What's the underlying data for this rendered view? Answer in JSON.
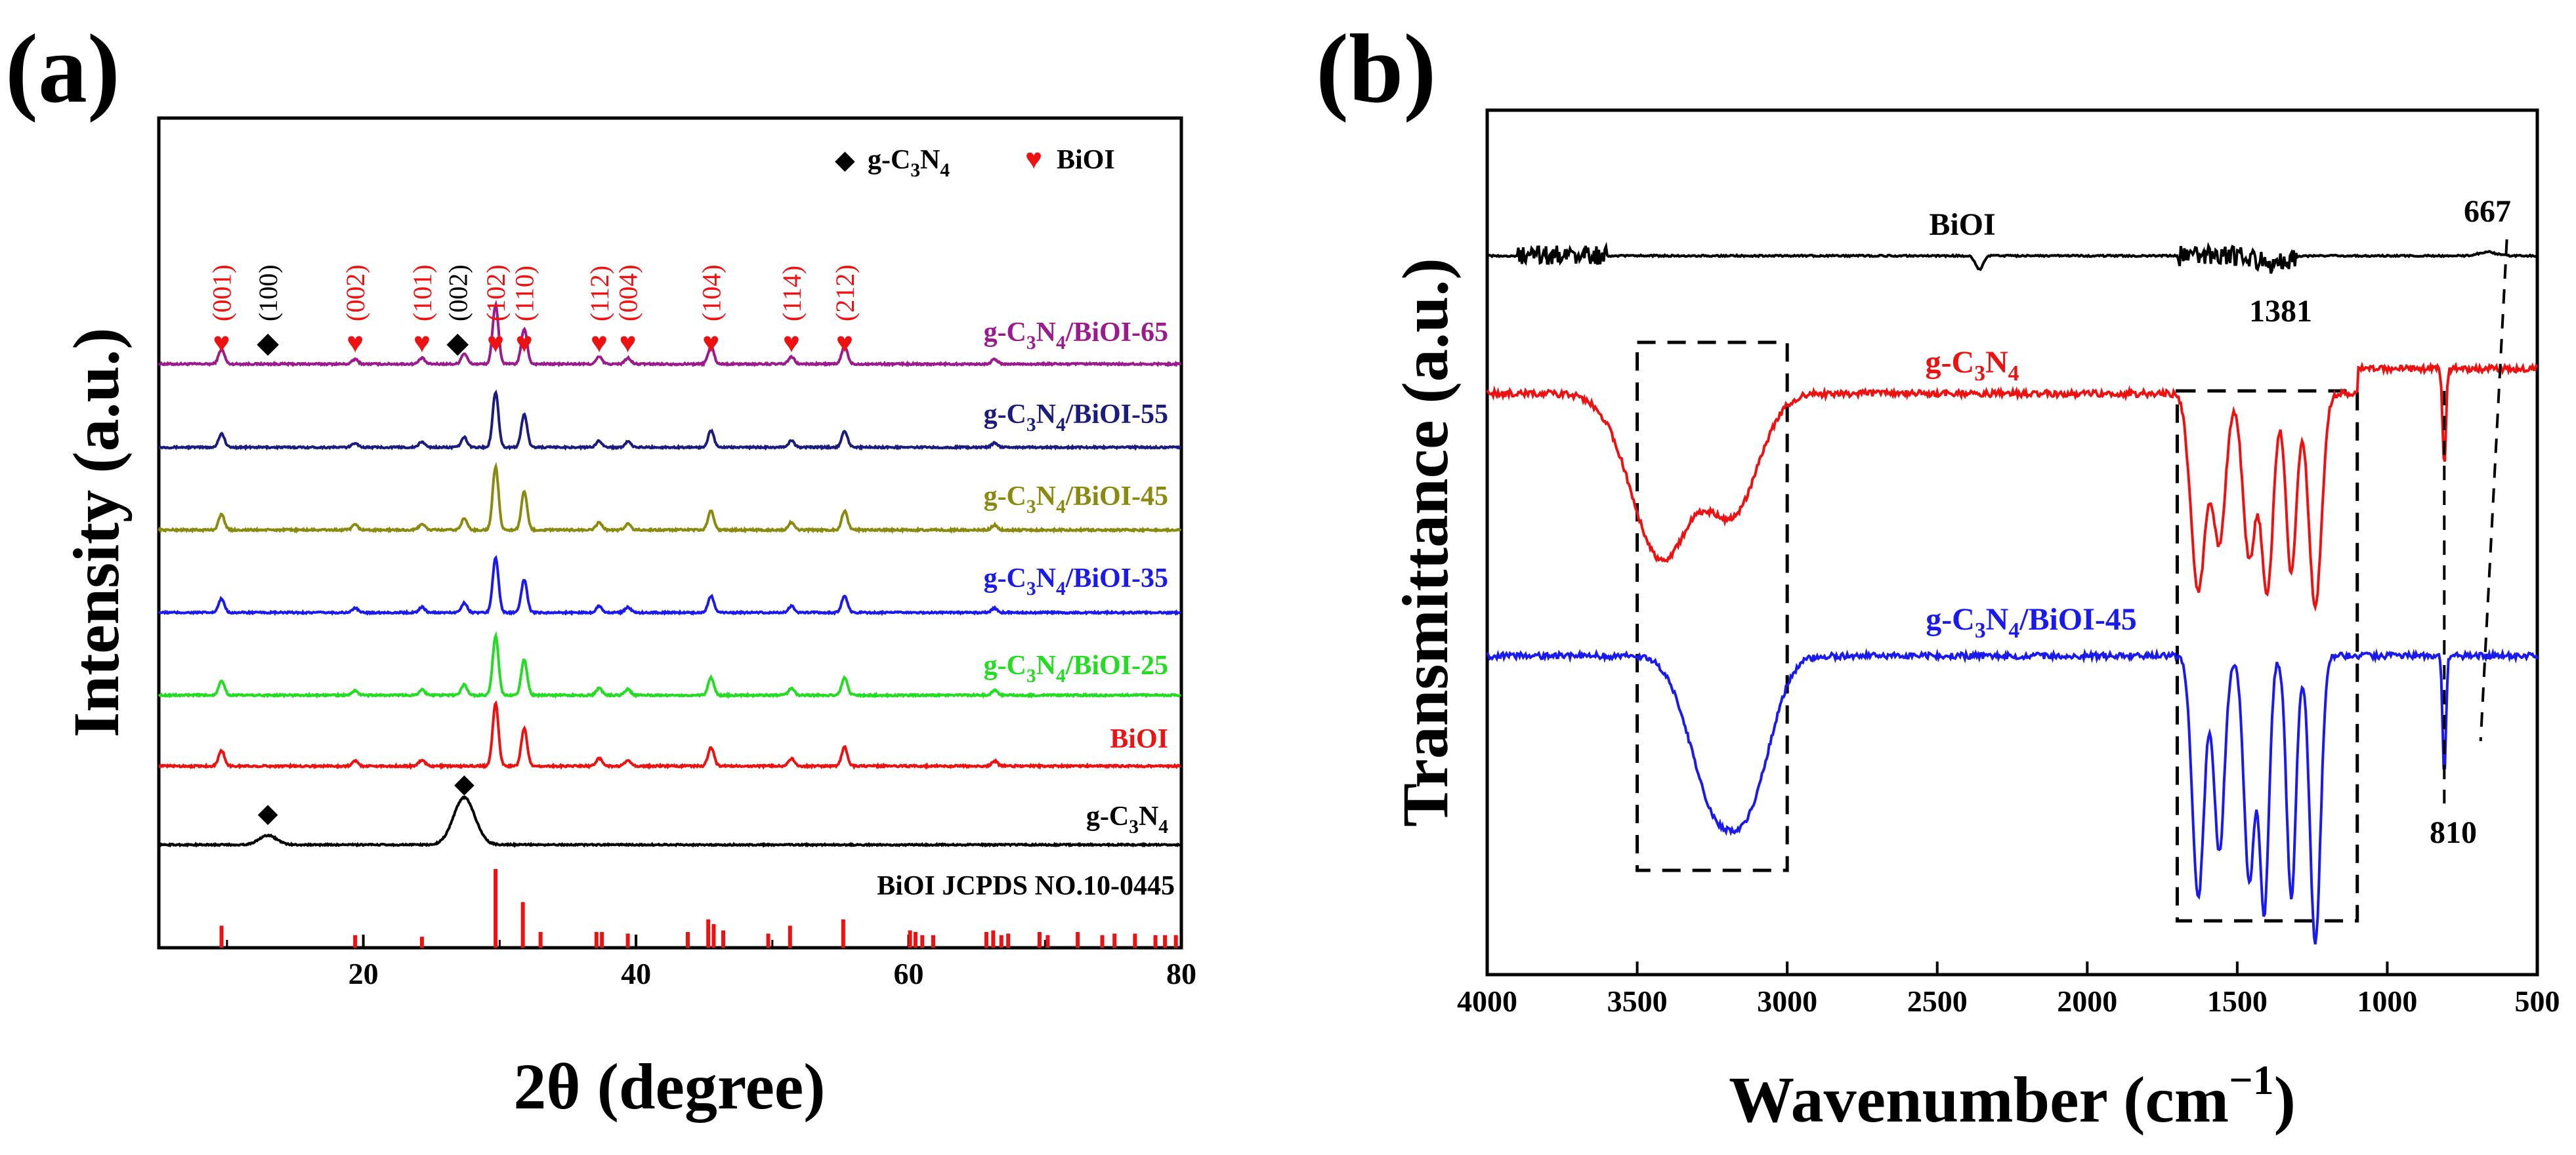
{
  "chart_data": [
    {
      "panel": "(a)",
      "type": "line",
      "title": "",
      "xlabel": "2θ (degree)",
      "ylabel": "Intensity (a.u.)",
      "xlim": [
        5,
        80
      ],
      "xticks": [
        20,
        40,
        60,
        80
      ],
      "legend": [
        {
          "symbol": "◆",
          "label": "g-C3N4",
          "color": "#000000"
        },
        {
          "symbol": "♥",
          "label": "BiOI",
          "color": "#ee1111"
        }
      ],
      "series": [
        {
          "name": "g-C3N4/BiOI-65",
          "color": "#9b1b8e",
          "sub": {
            "prefix": "g-C",
            "s1": "3",
            "mid": "N",
            "s2": "4",
            "suffix": "/BiOI-65"
          }
        },
        {
          "name": "g-C3N4/BiOI-55",
          "color": "#1c1c80",
          "sub": {
            "prefix": "g-C",
            "s1": "3",
            "mid": "N",
            "s2": "4",
            "suffix": "/BiOI-55"
          }
        },
        {
          "name": "g-C3N4/BiOI-45",
          "color": "#8a8a10",
          "sub": {
            "prefix": "g-C",
            "s1": "3",
            "mid": "N",
            "s2": "4",
            "suffix": "/BiOI-45"
          }
        },
        {
          "name": "g-C3N4/BiOI-35",
          "color": "#1a1aee",
          "sub": {
            "prefix": "g-C",
            "s1": "3",
            "mid": "N",
            "s2": "4",
            "suffix": "/BiOI-35"
          }
        },
        {
          "name": "g-C3N4/BiOI-25",
          "color": "#22dd22",
          "sub": {
            "prefix": "g-C",
            "s1": "3",
            "mid": "N",
            "s2": "4",
            "suffix": "/BiOI-25"
          }
        },
        {
          "name": "BiOI",
          "color": "#ee1111",
          "sub": {
            "prefix": "BiOI",
            "s1": "",
            "mid": "",
            "s2": "",
            "suffix": ""
          }
        },
        {
          "name": "g-C3N4",
          "color": "#000000",
          "sub": {
            "prefix": "g-C",
            "s1": "3",
            "mid": "N",
            "s2": "4",
            "suffix": ""
          }
        }
      ],
      "biOI_peaks": [
        {
          "x": 9.6,
          "h": 0.25
        },
        {
          "x": 19.4,
          "h": 0.08
        },
        {
          "x": 24.3,
          "h": 0.1
        },
        {
          "x": 29.7,
          "h": 1.0
        },
        {
          "x": 31.8,
          "h": 0.6
        },
        {
          "x": 37.3,
          "h": 0.12
        },
        {
          "x": 39.4,
          "h": 0.1
        },
        {
          "x": 45.5,
          "h": 0.3
        },
        {
          "x": 51.4,
          "h": 0.12
        },
        {
          "x": 55.3,
          "h": 0.3
        },
        {
          "x": 66.3,
          "h": 0.08
        }
      ],
      "gcn_peaks": [
        {
          "x": 13.0,
          "h": 0.2
        },
        {
          "x": 27.4,
          "h": 1.0
        }
      ],
      "peak_annotations": [
        {
          "label": "(001)",
          "x": 9.6,
          "color": "#ee1111",
          "marker": "♥"
        },
        {
          "label": "(100)",
          "x": 13.0,
          "color": "#000000",
          "marker": "◆"
        },
        {
          "label": "(002)",
          "x": 19.4,
          "color": "#ee1111",
          "marker": "♥"
        },
        {
          "label": "(101)",
          "x": 24.3,
          "color": "#ee1111",
          "marker": "♥"
        },
        {
          "label": "(002)",
          "x": 27.4,
          "color": "#000000",
          "marker": "◆"
        },
        {
          "label": "(102)",
          "x": 29.7,
          "color": "#ee1111",
          "marker": "♥"
        },
        {
          "label": "(110)",
          "x": 31.8,
          "color": "#ee1111",
          "marker": "♥"
        },
        {
          "label": "(112)",
          "x": 37.3,
          "color": "#ee1111",
          "marker": "♥"
        },
        {
          "label": "(004)",
          "x": 39.4,
          "color": "#ee1111",
          "marker": "♥"
        },
        {
          "label": "(104)",
          "x": 45.5,
          "color": "#ee1111",
          "marker": "♥"
        },
        {
          "label": "(114)",
          "x": 51.4,
          "color": "#ee1111",
          "marker": "♥"
        },
        {
          "label": "(212)",
          "x": 55.3,
          "color": "#ee1111",
          "marker": "♥"
        }
      ],
      "gcn_markers": [
        {
          "x": 13.0
        },
        {
          "x": 27.4
        }
      ],
      "reference": {
        "label": "BiOI JCPDS NO.10-0445",
        "color": "#ee1111",
        "lines": [
          {
            "x": 9.6,
            "h": 0.28
          },
          {
            "x": 19.4,
            "h": 0.16
          },
          {
            "x": 24.3,
            "h": 0.14
          },
          {
            "x": 29.7,
            "h": 1.0
          },
          {
            "x": 31.7,
            "h": 0.58
          },
          {
            "x": 33.0,
            "h": 0.2
          },
          {
            "x": 37.1,
            "h": 0.2
          },
          {
            "x": 37.5,
            "h": 0.2
          },
          {
            "x": 39.4,
            "h": 0.18
          },
          {
            "x": 43.8,
            "h": 0.2
          },
          {
            "x": 45.3,
            "h": 0.36
          },
          {
            "x": 45.7,
            "h": 0.3
          },
          {
            "x": 46.4,
            "h": 0.22
          },
          {
            "x": 49.7,
            "h": 0.18
          },
          {
            "x": 51.3,
            "h": 0.28
          },
          {
            "x": 55.2,
            "h": 0.36
          },
          {
            "x": 60.1,
            "h": 0.22
          },
          {
            "x": 60.5,
            "h": 0.2
          },
          {
            "x": 61.0,
            "h": 0.16
          },
          {
            "x": 61.8,
            "h": 0.16
          },
          {
            "x": 65.7,
            "h": 0.2
          },
          {
            "x": 66.2,
            "h": 0.22
          },
          {
            "x": 66.8,
            "h": 0.16
          },
          {
            "x": 67.3,
            "h": 0.18
          },
          {
            "x": 69.6,
            "h": 0.2
          },
          {
            "x": 70.2,
            "h": 0.16
          },
          {
            "x": 72.4,
            "h": 0.2
          },
          {
            "x": 74.2,
            "h": 0.16
          },
          {
            "x": 75.1,
            "h": 0.18
          },
          {
            "x": 76.6,
            "h": 0.18
          },
          {
            "x": 78.1,
            "h": 0.16
          },
          {
            "x": 78.8,
            "h": 0.16
          },
          {
            "x": 79.6,
            "h": 0.16
          }
        ]
      }
    },
    {
      "panel": "(b)",
      "type": "line",
      "title": "",
      "xlabel_main": "Wavenumber (cm",
      "xlabel_sup": "−1",
      "xlabel_end": ")",
      "ylabel": "Transmittance (a.u.)",
      "xlim": [
        4000,
        500
      ],
      "xticks": [
        4000,
        3500,
        3000,
        2500,
        2000,
        1500,
        1000,
        500
      ],
      "series": [
        {
          "name": "BiOI",
          "color": "#000000",
          "sub": {
            "prefix": "BiOI",
            "s1": "",
            "mid": "",
            "s2": "",
            "suffix": ""
          },
          "bands": [
            {
              "x": 2360,
              "d": 0.35,
              "w": 18
            },
            {
              "x": 1381,
              "d": 0.2,
              "w": 60
            },
            {
              "x": 667,
              "d": -0.1,
              "w": 40
            }
          ]
        },
        {
          "name": "g-C3N4",
          "color": "#ee1111",
          "sub": {
            "prefix": "g-C",
            "s1": "3",
            "mid": "N",
            "s2": "4",
            "suffix": ""
          },
          "bands": [
            {
              "x": 3420,
              "d": 1.0,
              "w": 140
            },
            {
              "x": 3180,
              "d": 0.7,
              "w": 120
            },
            {
              "x": 1630,
              "d": 1.2,
              "w": 35
            },
            {
              "x": 1560,
              "d": 0.9,
              "w": 30
            },
            {
              "x": 1460,
              "d": 1.0,
              "w": 30
            },
            {
              "x": 1400,
              "d": 1.2,
              "w": 28
            },
            {
              "x": 1320,
              "d": 1.1,
              "w": 25
            },
            {
              "x": 1240,
              "d": 1.3,
              "w": 30
            },
            {
              "x": 810,
              "d": 0.6,
              "w": 8
            }
          ]
        },
        {
          "name": "g-C3N4/BiOI-45",
          "color": "#1a1aee",
          "sub": {
            "prefix": "g-C",
            "s1": "3",
            "mid": "N",
            "s2": "4",
            "suffix": "/BiOI-45"
          },
          "bands": [
            {
              "x": 3250,
              "d": 0.9,
              "w": 110
            },
            {
              "x": 3120,
              "d": 0.8,
              "w": 100
            },
            {
              "x": 1630,
              "d": 1.6,
              "w": 28
            },
            {
              "x": 1560,
              "d": 1.3,
              "w": 25
            },
            {
              "x": 1460,
              "d": 1.5,
              "w": 25
            },
            {
              "x": 1410,
              "d": 1.7,
              "w": 22
            },
            {
              "x": 1320,
              "d": 1.6,
              "w": 22
            },
            {
              "x": 1240,
              "d": 1.9,
              "w": 25
            },
            {
              "x": 810,
              "d": 0.8,
              "w": 8
            }
          ]
        }
      ],
      "annotations": [
        {
          "text": "1381",
          "x": 1381
        },
        {
          "text": "667",
          "x": 667
        },
        {
          "text": "810",
          "x": 810
        }
      ],
      "dashed_regions": [
        {
          "x1": 3500,
          "x2": 3000
        },
        {
          "x1": 1700,
          "x2": 1100
        }
      ]
    }
  ]
}
